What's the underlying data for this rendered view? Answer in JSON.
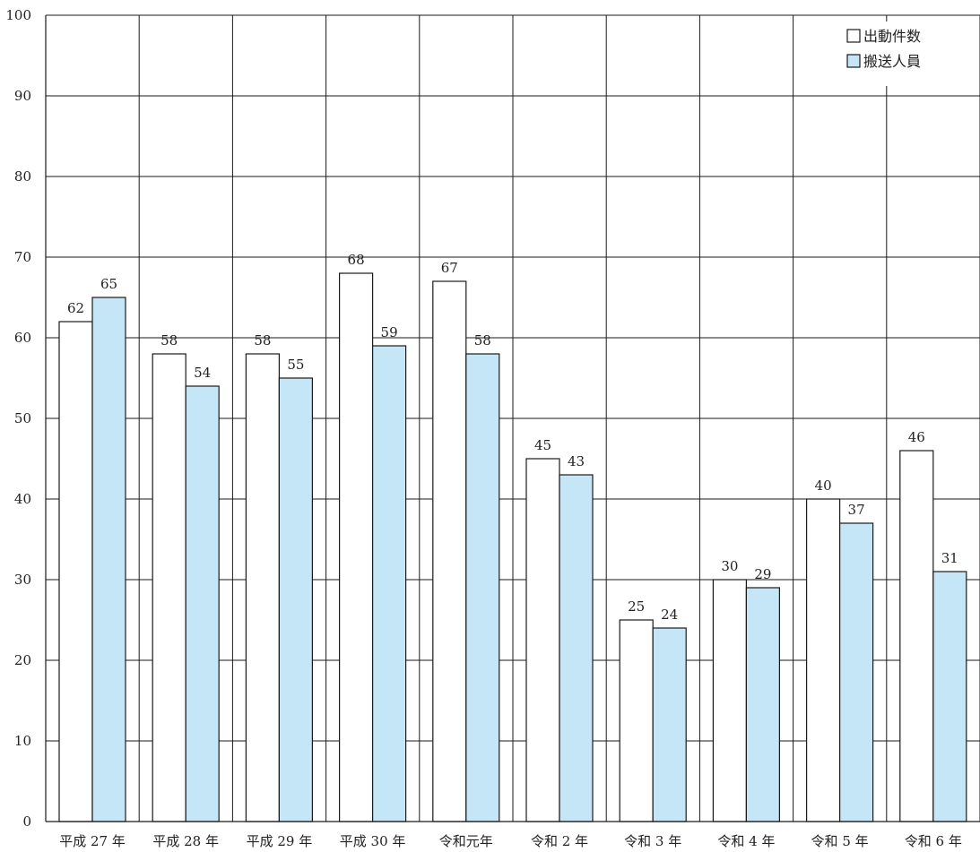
{
  "chart_data": {
    "type": "bar",
    "title": "",
    "xlabel": "",
    "ylabel": "",
    "ylim": [
      0,
      100
    ],
    "yticks": [
      0,
      10,
      20,
      30,
      40,
      50,
      60,
      70,
      80,
      90,
      100
    ],
    "grid": true,
    "legend_position": "top-right",
    "categories": [
      "平成 27 年",
      "平成 28 年",
      "平成 29 年",
      "平成 30 年",
      "令和元年",
      "令和 2 年",
      "令和 3 年",
      "令和 4 年",
      "令和 5 年",
      "令和 6 年"
    ],
    "series": [
      {
        "name": "出動件数",
        "color": "#ffffff",
        "values": [
          62,
          58,
          58,
          68,
          67,
          45,
          25,
          30,
          40,
          46
        ]
      },
      {
        "name": "搬送人員",
        "color": "#c5e6f6",
        "values": [
          65,
          54,
          55,
          59,
          58,
          43,
          24,
          29,
          37,
          31
        ]
      }
    ]
  }
}
